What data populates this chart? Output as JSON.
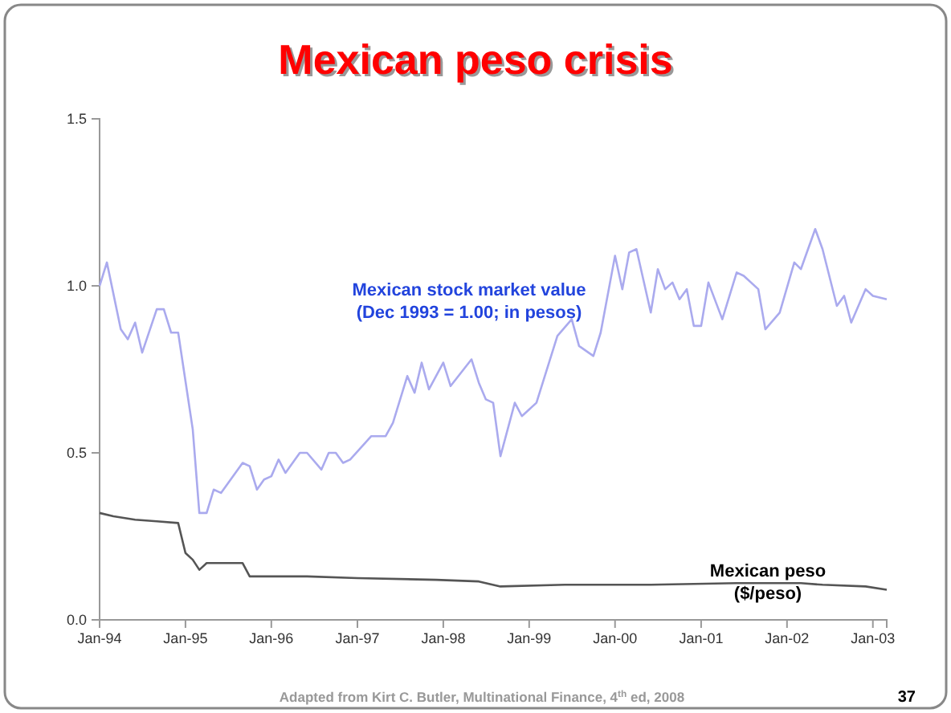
{
  "chart_data": {
    "type": "line",
    "title": "Mexican peso crisis",
    "annotations": [
      "Adapted from Kirt C. Butler, Multinational Finance, 4$^{th}$ ed, 2008",
      "37"
    ],
    "xlim": [
      "1994-01",
      "2003-03"
    ],
    "xticks": [
      {
        "value": "1994-01",
        "label": "Jan-94"
      },
      {
        "value": "1995-01",
        "label": "Jan-95"
      },
      {
        "value": "1996-01",
        "label": "Jan-96"
      },
      {
        "value": "1997-01",
        "label": "Jan-97"
      },
      {
        "value": "1998-01",
        "label": "Jan-98"
      },
      {
        "value": "1999-01",
        "label": "Jan-99"
      },
      {
        "value": "2000-01",
        "label": "Jan-00"
      },
      {
        "value": "2001-01",
        "label": "Jan-01"
      },
      {
        "value": "2002-01",
        "label": "Jan-02"
      },
      {
        "value": "2003-01",
        "label": "Jan-03"
      }
    ],
    "ylim": [
      0,
      1.5
    ],
    "yticks": [
      {
        "value": 0,
        "label": "0.0"
      },
      0.5,
      {
        "value": 1,
        "label": "1.0"
      },
      1.5
    ],
    "grid": false,
    "legend": false,
    "marker": "none",
    "line_style": "solid",
    "series": [
      {
        "name": "Mexican stock market value\n(Dec 1993 = 1.00; in pesos)",
        "color": "#aaaaee",
        "x": [
          "1994-01",
          "1994-02",
          "1994-04",
          "1994-05",
          "1994-06",
          "1994-07",
          "1994-09",
          "1994-10",
          "1994-11",
          "1994-12",
          "1995-02",
          "1995-03",
          "1995-04",
          "1995-05",
          "1995-06",
          "1995-09",
          "1995-10",
          "1995-11",
          "1995-12",
          "1996-01",
          "1996-02",
          "1996-03",
          "1996-05",
          "1996-06",
          "1996-08",
          "1996-09",
          "1996-10",
          "1996-11",
          "1996-12",
          "1997-03",
          "1997-04",
          "1997-05",
          "1997-06",
          "1997-08",
          "1997-09",
          "1997-10",
          "1997-11",
          "1998-01",
          "1998-02",
          "1998-05",
          "1998-06",
          "1998-07",
          "1998-08",
          "1998-09",
          "1998-11",
          "1998-12",
          "1999-01",
          "1999-02",
          "1999-05",
          "1999-07",
          "1999-08",
          "1999-10",
          "1999-11",
          "2000-01",
          "2000-02",
          "2000-03",
          "2000-04",
          "2000-06",
          "2000-07",
          "2000-08",
          "2000-09",
          "2000-10",
          "2000-11",
          "2000-12",
          "2001-01",
          "2001-02",
          "2001-04",
          "2001-06",
          "2001-07",
          "2001-09",
          "2001-10",
          "2001-12",
          "2002-02",
          "2002-03",
          "2002-05",
          "2002-06",
          "2002-08",
          "2002-09",
          "2002-10",
          "2002-12",
          "2003-01",
          "2003-03"
        ],
        "values": [
          1.0,
          1.07,
          0.87,
          0.84,
          0.89,
          0.8,
          0.93,
          0.93,
          0.86,
          0.86,
          0.57,
          0.32,
          0.32,
          0.39,
          0.38,
          0.47,
          0.46,
          0.39,
          0.42,
          0.43,
          0.48,
          0.44,
          0.5,
          0.5,
          0.45,
          0.5,
          0.5,
          0.47,
          0.48,
          0.55,
          0.55,
          0.55,
          0.59,
          0.73,
          0.68,
          0.77,
          0.69,
          0.77,
          0.7,
          0.78,
          0.71,
          0.66,
          0.65,
          0.49,
          0.65,
          0.61,
          0.63,
          0.65,
          0.85,
          0.9,
          0.82,
          0.79,
          0.86,
          1.09,
          0.99,
          1.1,
          1.11,
          0.92,
          1.05,
          0.99,
          1.01,
          0.96,
          0.99,
          0.88,
          0.88,
          1.01,
          0.9,
          1.04,
          1.03,
          0.99,
          0.87,
          0.92,
          1.07,
          1.05,
          1.17,
          1.11,
          0.94,
          0.97,
          0.89,
          0.99,
          0.97,
          0.96
        ]
      },
      {
        "name": "Mexican peso\n($/peso)",
        "color": "#555555",
        "x": [
          "1994-01",
          "1994-03",
          "1994-06",
          "1994-09",
          "1994-12",
          "1995-01",
          "1995-02",
          "1995-03",
          "1995-04",
          "1995-09",
          "1995-10",
          "1996-06",
          "1997-01",
          "1997-12",
          "1998-06",
          "1998-09",
          "1999-06",
          "2000-06",
          "2001-06",
          "2002-03",
          "2002-06",
          "2002-12",
          "2003-03"
        ],
        "values": [
          0.32,
          0.31,
          0.3,
          0.295,
          0.29,
          0.2,
          0.18,
          0.15,
          0.17,
          0.17,
          0.13,
          0.13,
          0.125,
          0.12,
          0.115,
          0.1,
          0.105,
          0.105,
          0.11,
          0.11,
          0.105,
          0.1,
          0.09
        ]
      }
    ]
  }
}
